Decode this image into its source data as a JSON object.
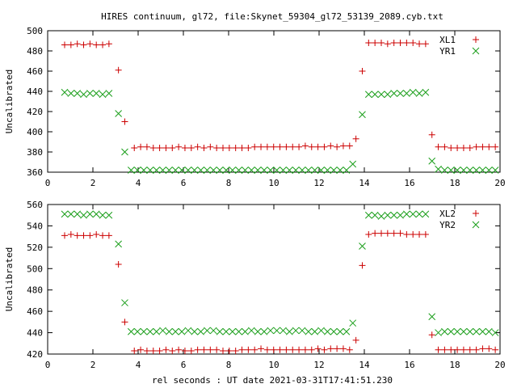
{
  "title": "HIRES continuum, gl72, file:Skynet_59304_gl72_53139_2089.cyb.txt",
  "xlabel": "rel seconds : UT date 2021-03-31T17:41:51.230",
  "chart_data": [
    {
      "type": "scatter",
      "ylabel": "Uncalibrated",
      "xlim": [
        0,
        20
      ],
      "ylim": [
        360,
        500
      ],
      "xticks": [
        0,
        2,
        4,
        6,
        8,
        10,
        12,
        14,
        16,
        18,
        20
      ],
      "yticks": [
        360,
        380,
        400,
        420,
        440,
        460,
        480,
        500
      ],
      "legend_position": "top-right",
      "series": [
        {
          "name": "XL1",
          "color": "#cc0000",
          "marker": "plus",
          "x": [
            0.75,
            1.03,
            1.31,
            1.59,
            1.87,
            2.15,
            2.43,
            2.71,
            3.13,
            3.41,
            3.83,
            4.11,
            4.39,
            4.67,
            4.95,
            5.23,
            5.51,
            5.79,
            6.07,
            6.35,
            6.63,
            6.91,
            7.19,
            7.47,
            7.75,
            8.03,
            8.31,
            8.59,
            8.87,
            9.15,
            9.43,
            9.71,
            9.99,
            10.27,
            10.55,
            10.83,
            11.11,
            11.39,
            11.67,
            11.95,
            12.23,
            12.51,
            12.79,
            13.07,
            13.35,
            13.63,
            13.91,
            14.19,
            14.47,
            14.75,
            15.03,
            15.31,
            15.59,
            15.87,
            16.15,
            16.43,
            16.71,
            16.99,
            17.27,
            17.55,
            17.83,
            18.11,
            18.39,
            18.67,
            18.95,
            19.23,
            19.51,
            19.79
          ],
          "y": [
            486,
            486,
            487,
            486,
            487,
            486,
            486,
            487,
            461,
            410,
            384,
            385,
            385,
            384,
            384,
            384,
            384,
            385,
            384,
            384,
            385,
            384,
            385,
            384,
            384,
            384,
            384,
            384,
            384,
            385,
            385,
            385,
            385,
            385,
            385,
            385,
            385,
            386,
            385,
            385,
            385,
            386,
            385,
            386,
            386,
            393,
            460,
            488,
            488,
            488,
            487,
            488,
            488,
            488,
            488,
            487,
            487,
            397,
            385,
            385,
            384,
            384,
            384,
            384,
            385,
            385,
            385,
            385
          ]
        },
        {
          "name": "YR1",
          "color": "#1a9e1a",
          "marker": "x",
          "x": [
            0.75,
            1.03,
            1.31,
            1.59,
            1.87,
            2.15,
            2.43,
            2.71,
            3.13,
            3.41,
            3.69,
            3.97,
            4.25,
            4.53,
            4.81,
            5.09,
            5.37,
            5.65,
            5.93,
            6.21,
            6.49,
            6.77,
            7.05,
            7.33,
            7.61,
            7.89,
            8.17,
            8.45,
            8.73,
            9.01,
            9.29,
            9.57,
            9.85,
            10.13,
            10.41,
            10.69,
            10.97,
            11.25,
            11.53,
            11.81,
            12.09,
            12.37,
            12.65,
            12.93,
            13.21,
            13.49,
            13.91,
            14.19,
            14.47,
            14.75,
            15.03,
            15.31,
            15.59,
            15.87,
            16.15,
            16.43,
            16.71,
            16.99,
            17.27,
            17.55,
            17.83,
            18.11,
            18.39,
            18.67,
            18.95,
            19.23,
            19.51,
            19.79
          ],
          "y": [
            439,
            438,
            438,
            437,
            438,
            438,
            437,
            438,
            418,
            380,
            362,
            362,
            362,
            362,
            362,
            362,
            362,
            362,
            362,
            362,
            362,
            362,
            362,
            362,
            362,
            362,
            362,
            362,
            362,
            362,
            362,
            362,
            362,
            362,
            362,
            362,
            362,
            362,
            362,
            362,
            362,
            362,
            362,
            362,
            362,
            368,
            417,
            437,
            437,
            437,
            437,
            438,
            438,
            438,
            439,
            438,
            439,
            371,
            363,
            362,
            362,
            362,
            362,
            362,
            362,
            362,
            362,
            362
          ]
        }
      ]
    },
    {
      "type": "scatter",
      "ylabel": "Uncalibrated",
      "xlim": [
        0,
        20
      ],
      "ylim": [
        420,
        560
      ],
      "xticks": [
        0,
        2,
        4,
        6,
        8,
        10,
        12,
        14,
        16,
        18,
        20
      ],
      "yticks": [
        420,
        440,
        460,
        480,
        500,
        520,
        540,
        560
      ],
      "legend_position": "top-right",
      "series": [
        {
          "name": "XL2",
          "color": "#cc0000",
          "marker": "plus",
          "x": [
            0.75,
            1.03,
            1.31,
            1.59,
            1.87,
            2.15,
            2.43,
            2.71,
            3.13,
            3.41,
            3.83,
            4.11,
            4.39,
            4.67,
            4.95,
            5.23,
            5.51,
            5.79,
            6.07,
            6.35,
            6.63,
            6.91,
            7.19,
            7.47,
            7.75,
            8.03,
            8.31,
            8.59,
            8.87,
            9.15,
            9.43,
            9.71,
            9.99,
            10.27,
            10.55,
            10.83,
            11.11,
            11.39,
            11.67,
            11.95,
            12.23,
            12.51,
            12.79,
            13.07,
            13.35,
            13.63,
            13.91,
            14.19,
            14.47,
            14.75,
            15.03,
            15.31,
            15.59,
            15.87,
            16.15,
            16.43,
            16.71,
            16.99,
            17.27,
            17.55,
            17.83,
            18.11,
            18.39,
            18.67,
            18.95,
            19.23,
            19.51,
            19.79
          ],
          "y": [
            531,
            532,
            531,
            531,
            531,
            532,
            531,
            531,
            504,
            450,
            423,
            424,
            423,
            423,
            423,
            424,
            423,
            424,
            423,
            423,
            424,
            424,
            424,
            424,
            423,
            423,
            423,
            424,
            424,
            424,
            425,
            424,
            424,
            424,
            424,
            424,
            424,
            424,
            424,
            425,
            424,
            425,
            425,
            425,
            424,
            433,
            503,
            532,
            533,
            533,
            533,
            533,
            533,
            532,
            532,
            532,
            532,
            438,
            424,
            424,
            424,
            424,
            424,
            424,
            424,
            425,
            425,
            424
          ]
        },
        {
          "name": "YR2",
          "color": "#1a9e1a",
          "marker": "x",
          "x": [
            0.75,
            1.03,
            1.31,
            1.59,
            1.87,
            2.15,
            2.43,
            2.71,
            3.13,
            3.41,
            3.69,
            3.97,
            4.25,
            4.53,
            4.81,
            5.09,
            5.37,
            5.65,
            5.93,
            6.21,
            6.49,
            6.77,
            7.05,
            7.33,
            7.61,
            7.89,
            8.17,
            8.45,
            8.73,
            9.01,
            9.29,
            9.57,
            9.85,
            10.13,
            10.41,
            10.69,
            10.97,
            11.25,
            11.53,
            11.81,
            12.09,
            12.37,
            12.65,
            12.93,
            13.21,
            13.49,
            13.91,
            14.19,
            14.47,
            14.75,
            15.03,
            15.31,
            15.59,
            15.87,
            16.15,
            16.43,
            16.71,
            16.99,
            17.27,
            17.55,
            17.83,
            18.11,
            18.39,
            18.67,
            18.95,
            19.23,
            19.51,
            19.79
          ],
          "y": [
            551,
            551,
            551,
            550,
            551,
            551,
            550,
            550,
            523,
            468,
            441,
            441,
            441,
            441,
            441,
            442,
            441,
            441,
            441,
            442,
            441,
            441,
            442,
            442,
            441,
            441,
            441,
            441,
            441,
            442,
            441,
            441,
            442,
            442,
            442,
            441,
            442,
            442,
            441,
            441,
            442,
            441,
            441,
            441,
            441,
            449,
            521,
            550,
            550,
            549,
            550,
            550,
            550,
            551,
            551,
            551,
            551,
            455,
            440,
            441,
            441,
            441,
            441,
            441,
            441,
            441,
            441,
            440
          ]
        }
      ]
    }
  ]
}
